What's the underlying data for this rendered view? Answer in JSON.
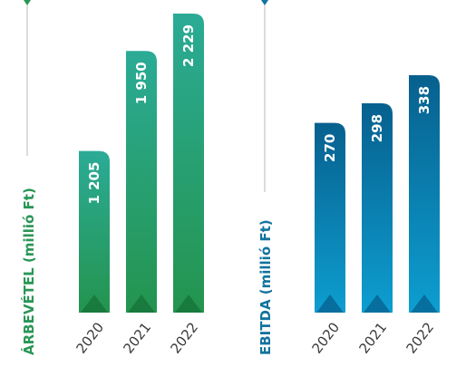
{
  "colors": {
    "revenue_top": "#2bab96",
    "revenue_bottom": "#24944e",
    "ebitda_top": "#07608e",
    "ebitda_bottom": "#0d9ed0",
    "revenue_label": "#2a9656",
    "ebitda_label": "#12739e",
    "axis_line": "#b9b9b9"
  },
  "chart_data": [
    {
      "type": "bar",
      "ylabel": "ÁRBEVÉTEL (millió Ft)",
      "categories": [
        "2020",
        "2021",
        "2022"
      ],
      "values": [
        1205,
        1950,
        2229
      ],
      "value_labels": [
        "1 205",
        "1 950",
        "2 229"
      ],
      "ylim": [
        0,
        2330
      ]
    },
    {
      "type": "bar",
      "ylabel": "EBITDA (millió Ft)",
      "categories": [
        "2020",
        "2021",
        "2022"
      ],
      "values": [
        270,
        298,
        338
      ],
      "value_labels": [
        "270",
        "298",
        "338"
      ],
      "ylim": [
        0,
        445
      ]
    }
  ]
}
